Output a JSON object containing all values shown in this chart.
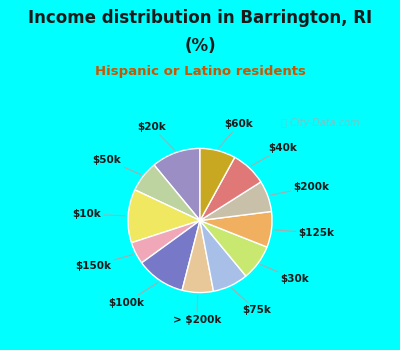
{
  "title_line1": "Income distribution in Barrington, RI",
  "title_line2": "(%)",
  "subtitle": "Hispanic or Latino residents",
  "title_color": "#1a1a1a",
  "subtitle_color": "#cc5500",
  "bg_top": "#00ffff",
  "bg_chart_color": "#d4eedf",
  "watermark": "ⓘ City-Data.com",
  "slices": [
    {
      "label": "$20k",
      "value": 11,
      "color": "#9b8ec4"
    },
    {
      "label": "$50k",
      "value": 7,
      "color": "#bdd4a0"
    },
    {
      "label": "$10k",
      "value": 12,
      "color": "#f0e860"
    },
    {
      "label": "$150k",
      "value": 5,
      "color": "#f0a8b8"
    },
    {
      "label": "$100k",
      "value": 11,
      "color": "#7878c8"
    },
    {
      "label": "> $200k",
      "value": 7,
      "color": "#e8c898"
    },
    {
      "label": "$75k",
      "value": 8,
      "color": "#a8c0e8"
    },
    {
      "label": "$30k",
      "value": 8,
      "color": "#c8e870"
    },
    {
      "label": "$125k",
      "value": 8,
      "color": "#f0b060"
    },
    {
      "label": "$200k",
      "value": 7,
      "color": "#c8c0a8"
    },
    {
      "label": "$40k",
      "value": 8,
      "color": "#e07878"
    },
    {
      "label": "$60k",
      "value": 8,
      "color": "#c8a820"
    }
  ],
  "start_angle": 90,
  "label_fontsize": 7.5,
  "label_color": "#1a1a1a"
}
